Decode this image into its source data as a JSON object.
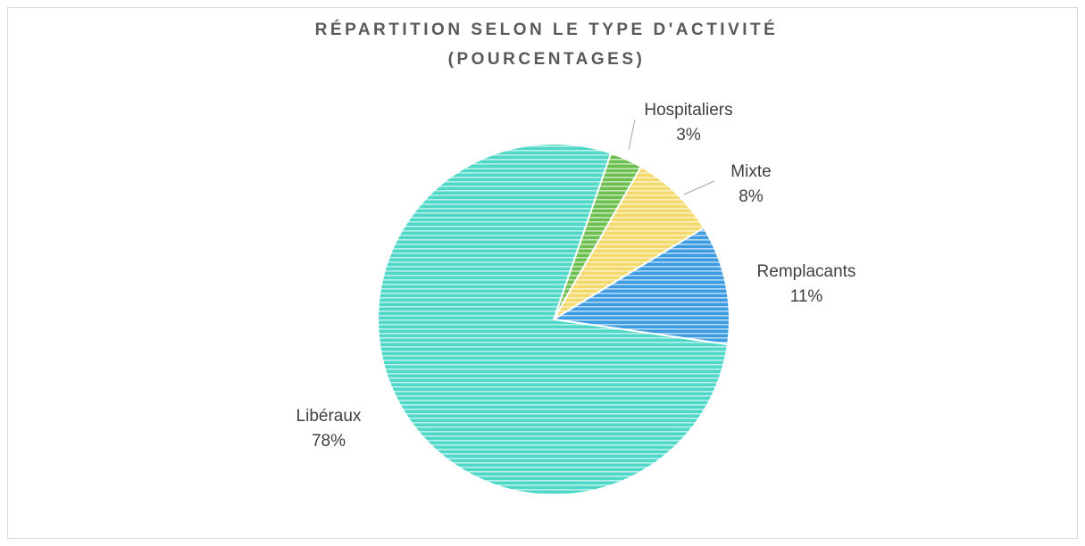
{
  "chart_data": {
    "type": "pie",
    "title": [
      "RÉPARTITION SELON LE TYPE D'ACTIVITÉ",
      "(POURCENTAGES)"
    ],
    "categories": [
      "Hospitaliers",
      "Mixte",
      "Remplacants",
      "Libéraux"
    ],
    "values": [
      3,
      8,
      11,
      78
    ],
    "value_labels": [
      "3%",
      "8%",
      "11%",
      "78%"
    ],
    "colors": [
      "#6cbf4c",
      "#f2d96a",
      "#3d9be0",
      "#4fd8c8"
    ]
  }
}
